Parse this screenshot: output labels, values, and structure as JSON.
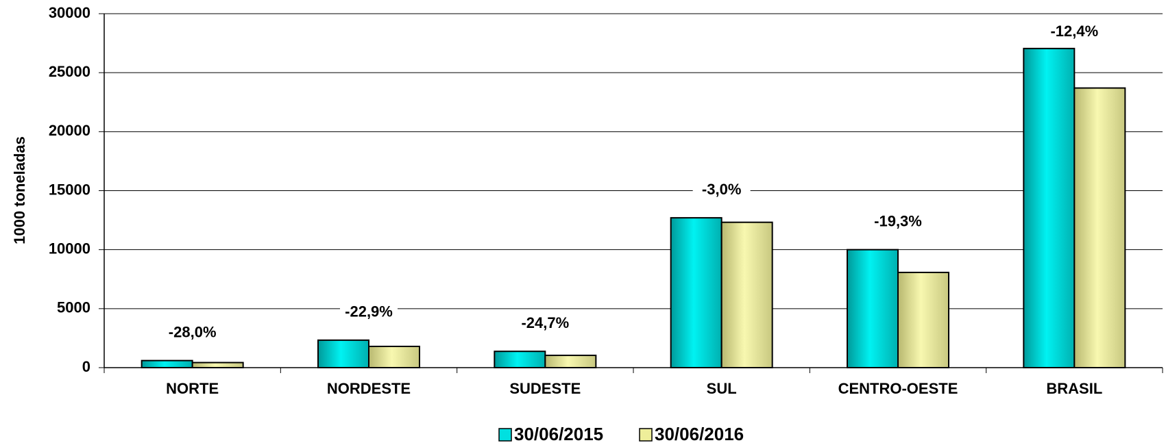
{
  "chart_data": {
    "type": "bar",
    "y_label": "1000 toneladas",
    "categories": [
      "NORTE",
      "NORDESTE",
      "SUDESTE",
      "SUL",
      "CENTRO-OESTE",
      "BRASIL"
    ],
    "series": [
      {
        "name": "30/06/2015",
        "color": "#00e0e0",
        "values": [
          600,
          2330,
          1380,
          12700,
          10000,
          27050
        ]
      },
      {
        "name": "30/06/2016",
        "color": "#eeee9a",
        "values": [
          430,
          1800,
          1040,
          12320,
          8070,
          23700
        ]
      }
    ],
    "annotations": [
      "-28,0%",
      "-22,9%",
      "-24,7%",
      "-3,0%",
      "-19,3%",
      "-12,4%"
    ],
    "ylim": [
      0,
      30000
    ],
    "yticks": [
      0,
      5000,
      10000,
      15000,
      20000,
      25000,
      30000
    ],
    "grid": true,
    "legend": "bottom"
  }
}
